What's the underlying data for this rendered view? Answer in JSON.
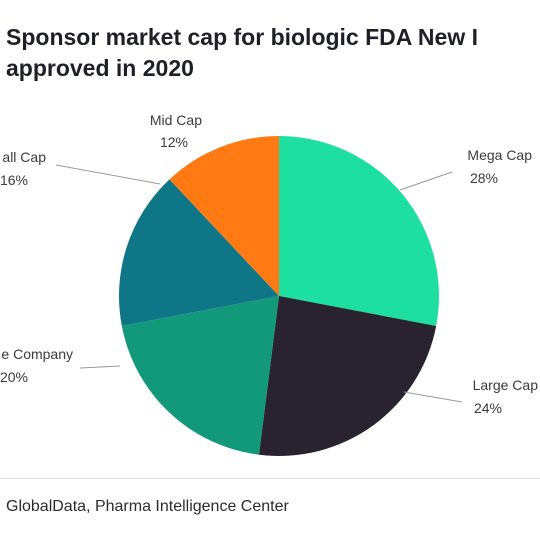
{
  "title_line1": "Sponsor market cap for biologic FDA New I",
  "title_line2": "approved in 2020",
  "source": "GlobalData, Pharma Intelligence Center",
  "chart_data": {
    "type": "pie",
    "title": "Sponsor market cap for biologic FDA New I approved in 2020",
    "slices": [
      {
        "name": "Mega Cap",
        "value": 28,
        "label": "28%",
        "color": "#1de0a0"
      },
      {
        "name": "Large Cap",
        "value": 24,
        "label": "24%",
        "color": "#29232f"
      },
      {
        "name": "e Company",
        "value": 20,
        "label": "20%",
        "color": "#12997a"
      },
      {
        "name": "all Cap",
        "value": 16,
        "label": "16%",
        "color": "#0f7687"
      },
      {
        "name": "Mid Cap",
        "value": 12,
        "label": "12%",
        "color": "#ff7a12"
      }
    ]
  }
}
